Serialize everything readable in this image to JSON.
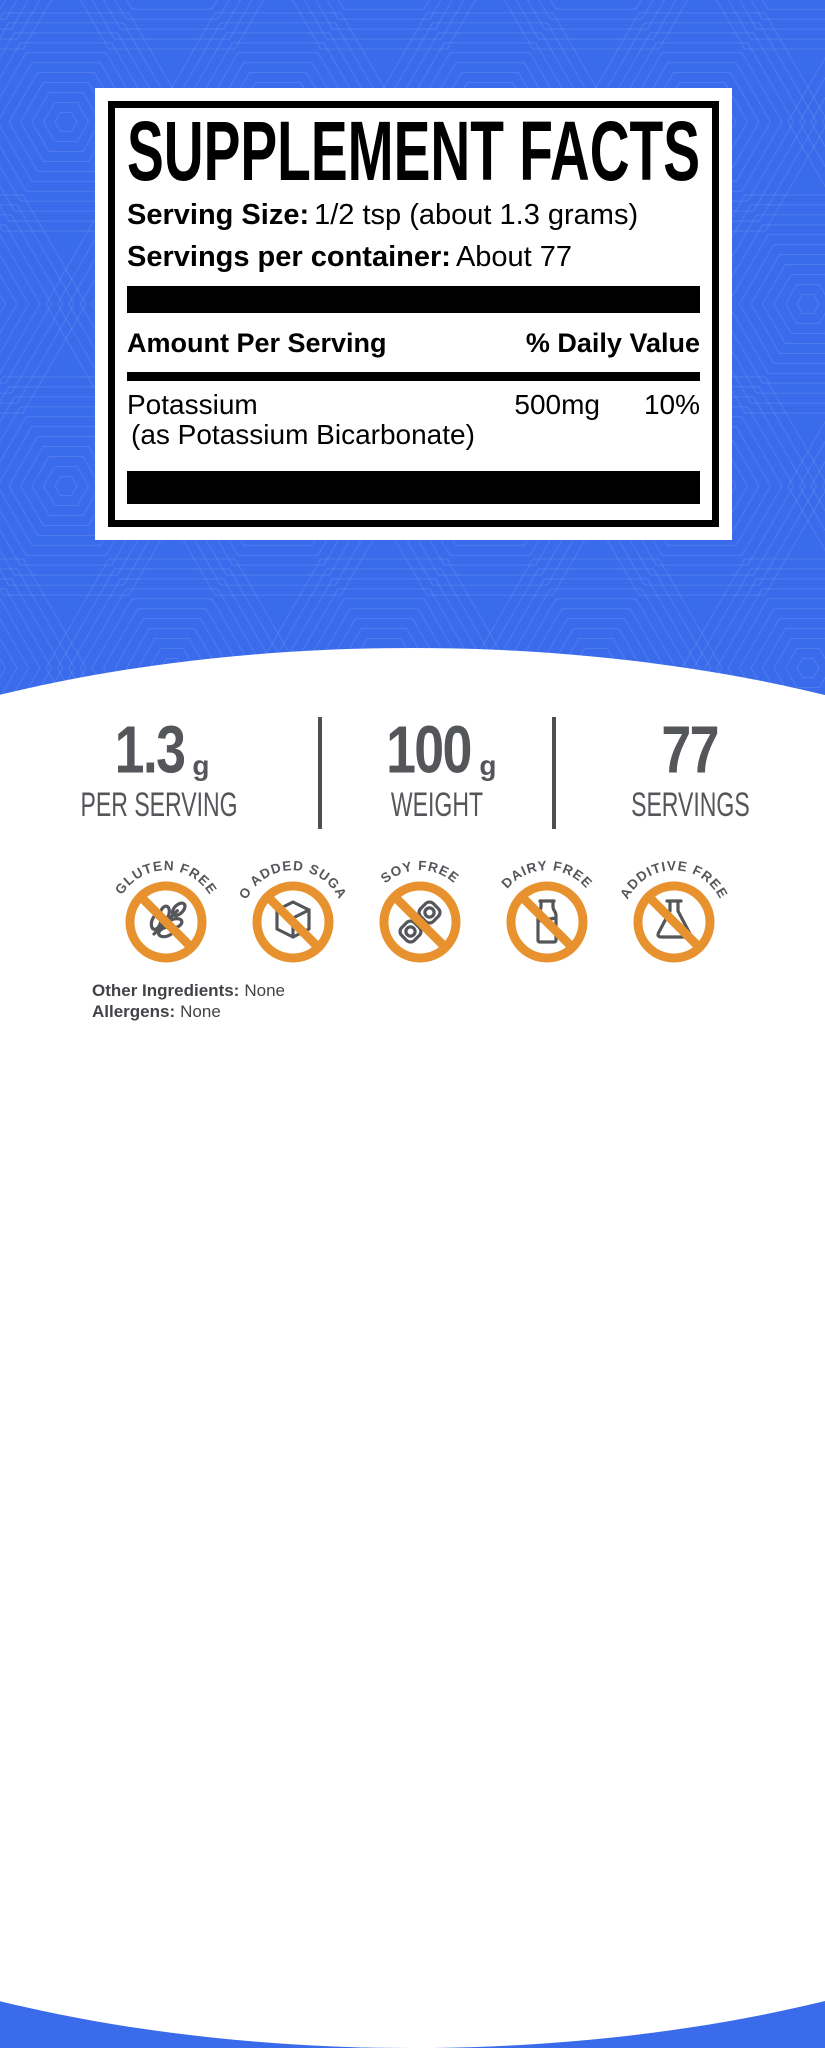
{
  "colors": {
    "background_blue": "#3A6BEB",
    "panel_black": "#000000",
    "stat_gray": "#54565A",
    "badge_orange": "#E8922F",
    "white": "#FFFFFF"
  },
  "supplement_facts": {
    "title": "SUPPLEMENT FACTS",
    "serving_size_label": "Serving Size:",
    "serving_size_value": "1/2 tsp (about 1.3 grams)",
    "servings_per_container_label": "Servings per container:",
    "servings_per_container_value": "About 77",
    "amount_per_serving_header": "Amount Per Serving",
    "daily_value_header": "% Daily Value",
    "rows": [
      {
        "name": "Potassium",
        "detail": "(as Potassium Bicarbonate)",
        "amount": "500mg",
        "daily_value": "10%"
      }
    ]
  },
  "stats": [
    {
      "value": "1.3",
      "unit": "g",
      "label": "PER SERVING"
    },
    {
      "value": "100",
      "unit": "g",
      "label": "WEIGHT"
    },
    {
      "value": "77",
      "unit": "",
      "label": "SERVINGS"
    }
  ],
  "badges": [
    {
      "label": "GLUTEN FREE",
      "icon": "wheat-icon"
    },
    {
      "label": "NO ADDED SUGAR",
      "icon": "sugar-cube-icon"
    },
    {
      "label": "SOY FREE",
      "icon": "soy-pod-icon"
    },
    {
      "label": "DAIRY FREE",
      "icon": "milk-bottle-icon"
    },
    {
      "label": "ADDITIVE FREE",
      "icon": "flask-icon"
    }
  ],
  "footer": {
    "other_ingredients_label": "Other Ingredients:",
    "other_ingredients_value": "None",
    "allergens_label": "Allergens:",
    "allergens_value": "None"
  }
}
